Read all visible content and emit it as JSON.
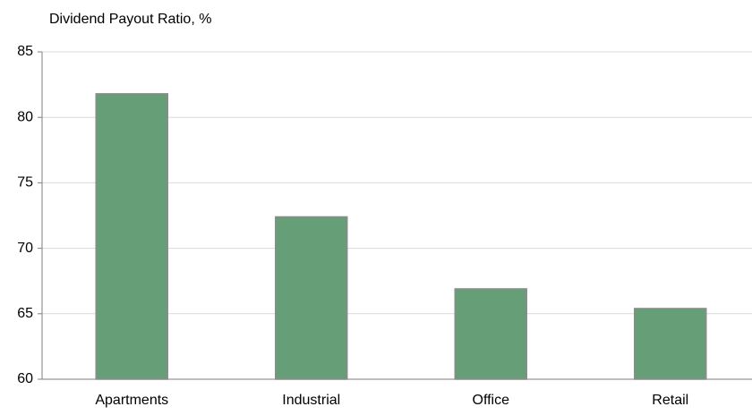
{
  "chart_data": {
    "type": "bar",
    "title": "Dividend Payout Ratio, %",
    "categories": [
      "Apartments",
      "Industrial",
      "Office",
      "Retail"
    ],
    "values": [
      81.8,
      72.4,
      66.9,
      65.4
    ],
    "color": "#669e78",
    "ylim": [
      60,
      85
    ],
    "yticks": [
      60,
      65,
      70,
      75,
      80,
      85
    ],
    "grid": true
  }
}
